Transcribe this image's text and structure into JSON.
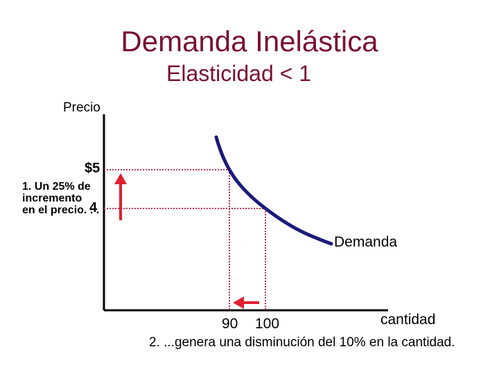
{
  "title": "Demanda Inelástica",
  "subtitle": "Elasticidad < 1",
  "axes": {
    "y_label": "Precio",
    "x_label": "cantidad"
  },
  "price_ticks": [
    "$5",
    "4"
  ],
  "quantity_ticks": [
    "90",
    "100"
  ],
  "curve_label": "Demanda",
  "annotation_1": "1. Un 25% de incremento en el precio. . .",
  "annotation_1_lines": [
    "1. Un 25% de",
    "incremento",
    "en el precio. . ."
  ],
  "annotation_2": "2. ...genera una disminución del 10% en la cantidad.",
  "colors": {
    "title": "#7a1030",
    "curve": "#1a1a7a",
    "guides": "#c0304a",
    "arrows": "#e02030"
  }
}
